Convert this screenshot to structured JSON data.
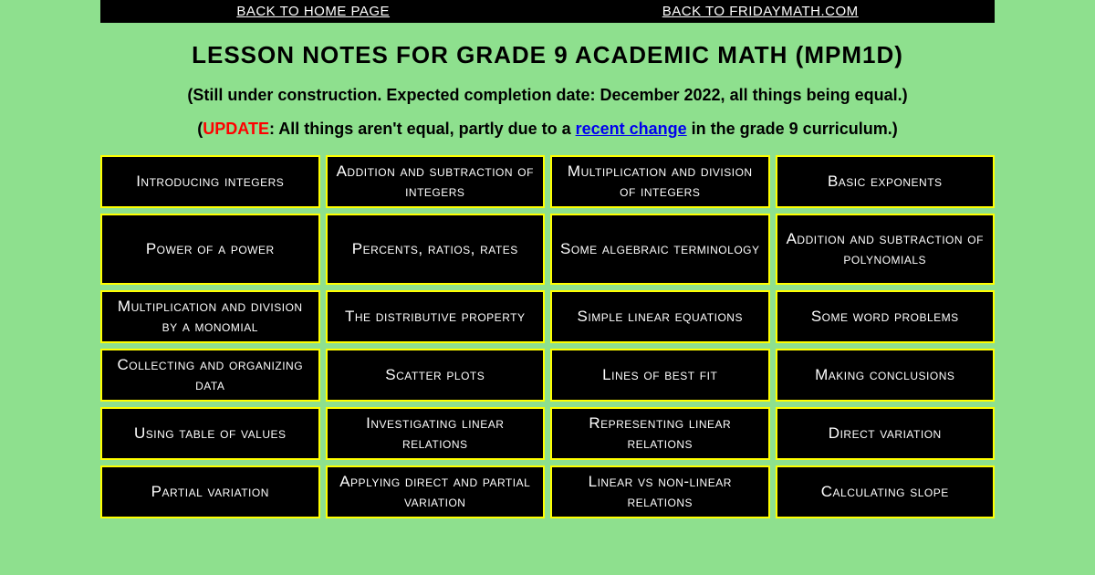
{
  "topbar": {
    "home": "BACK TO HOME PAGE",
    "friday": "BACK TO FRIDAYMATH.COM"
  },
  "title": "LESSON NOTES FOR GRADE 9 ACADEMIC MATH (MPM1D)",
  "subtitle1": "(Still under construction. Expected completion date: December 2022, all things being equal.)",
  "subtitle2": {
    "open": "(",
    "update": "UPDATE",
    "mid": ": All things aren't equal, partly due to a ",
    "link": "recent change",
    "end": " in the grade 9 curriculum.)"
  },
  "cells": [
    "Introducing integers",
    "Addition and subtraction of integers",
    "Multiplication and division of integers",
    "Basic exponents",
    "Power of a power",
    "Percents, ratios, rates",
    "Some algebraic terminology",
    "Addition and subtraction of polynomials",
    "Multiplication and division by a monomial",
    "The distributive property",
    "Simple linear equations",
    "Some word problems",
    "Collecting and organizing data",
    "Scatter plots",
    "Lines of best fit",
    "Making conclusions",
    "Using table of values",
    "Investigating linear relations",
    "Representing linear relations",
    "Direct variation",
    "Partial variation",
    "Applying direct and partial variation",
    "Linear vs non-linear relations",
    "Calculating slope"
  ],
  "style": {
    "page_bg": "#8ee08e",
    "cell_bg": "#000000",
    "cell_border": "#ffff00",
    "cell_text": "#ffffff",
    "update_color": "#ff0000",
    "link_color": "#0000ee",
    "columns": 4
  }
}
